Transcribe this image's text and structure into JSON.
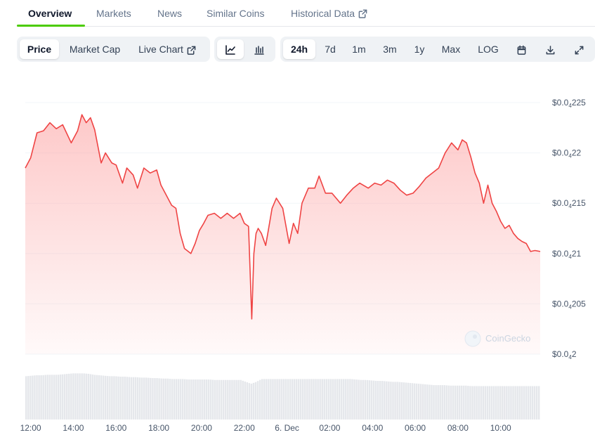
{
  "tabs": [
    {
      "label": "Overview",
      "active": true
    },
    {
      "label": "Markets"
    },
    {
      "label": "News"
    },
    {
      "label": "Similar Coins"
    },
    {
      "label": "Historical Data",
      "external": true
    }
  ],
  "toolbar": {
    "metric_options": [
      {
        "label": "Price",
        "selected": true
      },
      {
        "label": "Market Cap"
      },
      {
        "label": "Live Chart",
        "external": true
      }
    ],
    "chart_type_icons": [
      "line-chart-icon",
      "candlestick-chart-icon"
    ],
    "selected_chart_type": "line-chart-icon",
    "range_options": [
      {
        "label": "24h",
        "selected": true
      },
      {
        "label": "7d"
      },
      {
        "label": "1m"
      },
      {
        "label": "3m"
      },
      {
        "label": "1y"
      },
      {
        "label": "Max"
      },
      {
        "label": "LOG"
      }
    ],
    "action_icons": [
      "calendar-icon",
      "download-icon",
      "fullscreen-icon"
    ]
  },
  "watermark": "CoinGecko",
  "colors": {
    "line": "#ef4444",
    "area_top": "#fca5a5",
    "volume": "#e5e7eb",
    "accent": "#4bcc00"
  },
  "chart_data": {
    "type": "area",
    "ylim": [
      2e-05,
      2.25e-05
    ],
    "yticks": [
      {
        "value": 2.25e-05,
        "label_prefix": "$0.0",
        "label_sub": "4",
        "label_suffix": "225"
      },
      {
        "value": 2.2e-05,
        "label_prefix": "$0.0",
        "label_sub": "4",
        "label_suffix": "22"
      },
      {
        "value": 2.15e-05,
        "label_prefix": "$0.0",
        "label_sub": "4",
        "label_suffix": "215"
      },
      {
        "value": 2.1e-05,
        "label_prefix": "$0.0",
        "label_sub": "4",
        "label_suffix": "21"
      },
      {
        "value": 2.05e-05,
        "label_prefix": "$0.0",
        "label_sub": "4",
        "label_suffix": "205"
      },
      {
        "value": 2e-05,
        "label_prefix": "$0.0",
        "label_sub": "4",
        "label_suffix": "2"
      }
    ],
    "xlim": [
      11.75,
      35.85
    ],
    "xticks": [
      {
        "hour": 12,
        "label": "12:00"
      },
      {
        "hour": 14,
        "label": "14:00"
      },
      {
        "hour": 16,
        "label": "16:00"
      },
      {
        "hour": 18,
        "label": "18:00"
      },
      {
        "hour": 20,
        "label": "20:00"
      },
      {
        "hour": 22,
        "label": "22:00"
      },
      {
        "hour": 24,
        "label": "6. Dec"
      },
      {
        "hour": 26,
        "label": "02:00"
      },
      {
        "hour": 28,
        "label": "04:00"
      },
      {
        "hour": 30,
        "label": "06:00"
      },
      {
        "hour": 32,
        "label": "08:00"
      },
      {
        "hour": 34,
        "label": "10:00"
      }
    ],
    "x": [
      11.75,
      12.0,
      12.3,
      12.6,
      12.9,
      13.2,
      13.5,
      13.9,
      14.2,
      14.4,
      14.6,
      14.8,
      15.0,
      15.3,
      15.5,
      15.8,
      16.0,
      16.3,
      16.5,
      16.8,
      17.0,
      17.3,
      17.6,
      17.9,
      18.1,
      18.3,
      18.6,
      18.8,
      19.0,
      19.2,
      19.5,
      19.7,
      19.9,
      20.1,
      20.3,
      20.6,
      20.9,
      21.2,
      21.5,
      21.8,
      22.0,
      22.2,
      22.35,
      22.45,
      22.55,
      22.65,
      22.8,
      23.0,
      23.1,
      23.3,
      23.5,
      23.8,
      24.1,
      24.3,
      24.5,
      24.7,
      25.0,
      25.3,
      25.5,
      25.8,
      26.1,
      26.5,
      26.8,
      27.1,
      27.4,
      27.8,
      28.1,
      28.4,
      28.7,
      29.0,
      29.3,
      29.6,
      29.9,
      30.2,
      30.5,
      30.8,
      31.1,
      31.4,
      31.7,
      32.0,
      32.2,
      32.4,
      32.6,
      32.8,
      33.0,
      33.2,
      33.4,
      33.6,
      33.8,
      34.0,
      34.2,
      34.4,
      34.6,
      34.8,
      35.0,
      35.2,
      35.4,
      35.6,
      35.85
    ],
    "y": [
      2.185e-05,
      2.195e-05,
      2.22e-05,
      2.222e-05,
      2.23e-05,
      2.224e-05,
      2.228e-05,
      2.21e-05,
      2.222e-05,
      2.238e-05,
      2.23e-05,
      2.235e-05,
      2.223e-05,
      2.19e-05,
      2.2e-05,
      2.19e-05,
      2.188e-05,
      2.17e-05,
      2.185e-05,
      2.178e-05,
      2.165e-05,
      2.185e-05,
      2.18e-05,
      2.183e-05,
      2.168e-05,
      2.16e-05,
      2.148e-05,
      2.145e-05,
      2.12e-05,
      2.105e-05,
      2.1e-05,
      2.11e-05,
      2.123e-05,
      2.13e-05,
      2.138e-05,
      2.14e-05,
      2.135e-05,
      2.14e-05,
      2.135e-05,
      2.14e-05,
      2.13e-05,
      2.127e-05,
      2.035e-05,
      2.1e-05,
      2.12e-05,
      2.125e-05,
      2.12e-05,
      2.108e-05,
      2.12e-05,
      2.145e-05,
      2.155e-05,
      2.145e-05,
      2.11e-05,
      2.13e-05,
      2.12e-05,
      2.15e-05,
      2.165e-05,
      2.165e-05,
      2.177e-05,
      2.16e-05,
      2.16e-05,
      2.15e-05,
      2.158e-05,
      2.165e-05,
      2.17e-05,
      2.165e-05,
      2.17e-05,
      2.168e-05,
      2.173e-05,
      2.17e-05,
      2.163e-05,
      2.158e-05,
      2.16e-05,
      2.167e-05,
      2.175e-05,
      2.18e-05,
      2.185e-05,
      2.2e-05,
      2.21e-05,
      2.203e-05,
      2.213e-05,
      2.21e-05,
      2.196e-05,
      2.18e-05,
      2.17e-05,
      2.15e-05,
      2.168e-05,
      2.15e-05,
      2.142e-05,
      2.132e-05,
      2.125e-05,
      2.128e-05,
      2.12e-05,
      2.115e-05,
      2.112e-05,
      2.11e-05,
      2.102e-05,
      2.103e-05,
      2.102e-05
    ],
    "volume_relative": [
      0.92,
      0.93,
      0.94,
      0.94,
      0.95,
      0.95,
      0.95,
      0.96,
      0.97,
      0.98,
      0.98,
      0.98,
      0.97,
      0.95,
      0.94,
      0.93,
      0.92,
      0.92,
      0.91,
      0.91,
      0.9,
      0.9,
      0.89,
      0.89,
      0.88,
      0.88,
      0.87,
      0.87,
      0.86,
      0.86,
      0.86,
      0.85,
      0.85,
      0.85,
      0.85,
      0.85,
      0.84,
      0.84,
      0.84,
      0.84,
      0.84,
      0.84,
      0.8,
      0.76,
      0.8,
      0.86,
      0.86,
      0.86,
      0.86,
      0.86,
      0.86,
      0.86,
      0.86,
      0.86,
      0.86,
      0.86,
      0.86,
      0.86,
      0.86,
      0.86,
      0.86,
      0.86,
      0.86,
      0.85,
      0.84,
      0.84,
      0.83,
      0.82,
      0.82,
      0.81,
      0.8,
      0.8,
      0.79,
      0.78,
      0.77,
      0.76,
      0.75,
      0.74,
      0.73,
      0.73,
      0.73,
      0.72,
      0.72,
      0.72,
      0.72,
      0.71,
      0.71,
      0.71,
      0.71,
      0.71,
      0.71,
      0.71,
      0.71,
      0.71,
      0.71,
      0.71,
      0.71,
      0.71,
      0.71
    ],
    "grid": true,
    "legend": "none"
  }
}
